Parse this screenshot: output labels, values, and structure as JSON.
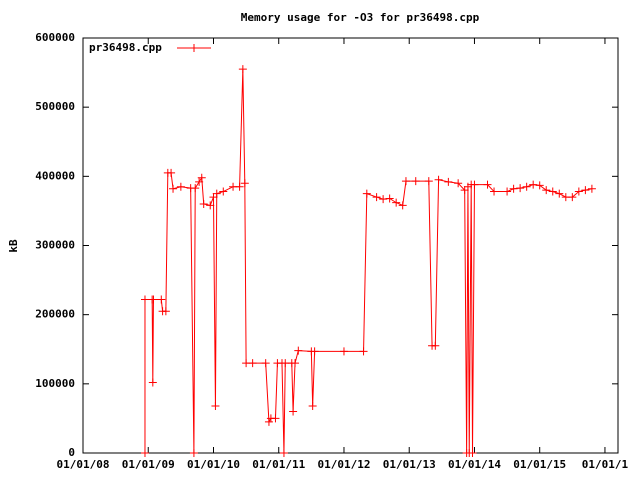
{
  "chart_data": {
    "type": "line",
    "title": "Memory usage for -O3 for pr36498.cpp",
    "y_label": "kB",
    "x": [
      2008.95,
      2008.95,
      2009.06,
      2009.07,
      2009.08,
      2009.2,
      2009.22,
      2009.27,
      2009.3,
      2009.35,
      2009.38,
      2009.5,
      2009.65,
      2009.7,
      2009.72,
      2009.78,
      2009.82,
      2009.85,
      2009.95,
      2010.0,
      2010.03,
      2010.05,
      2010.15,
      2010.3,
      2010.4,
      2010.45,
      2010.48,
      2010.5,
      2010.6,
      2010.8,
      2010.85,
      2010.88,
      2010.95,
      2010.98,
      2011.05,
      2011.08,
      2011.1,
      2011.2,
      2011.22,
      2011.25,
      2011.3,
      2011.5,
      2011.52,
      2011.55,
      2012.0,
      2012.3,
      2012.35,
      2012.5,
      2012.6,
      2012.7,
      2012.8,
      2012.9,
      2012.95,
      2013.1,
      2013.3,
      2013.35,
      2013.4,
      2013.45,
      2013.6,
      2013.75,
      2013.85,
      2013.88,
      2013.9,
      2013.92,
      2013.95,
      2013.97,
      2014.0,
      2014.2,
      2014.3,
      2014.5,
      2014.6,
      2014.7,
      2014.8,
      2014.9,
      2015.0,
      2015.1,
      2015.2,
      2015.3,
      2015.4,
      2015.5,
      2015.6,
      2015.7,
      2015.8
    ],
    "series": [
      {
        "name": "pr36498.cpp",
        "color": "#ff0000",
        "values": [
          0,
          222000,
          222000,
          102000,
          222000,
          222000,
          205000,
          205000,
          405000,
          405000,
          382000,
          385000,
          383000,
          0,
          383000,
          392000,
          398000,
          360000,
          358000,
          370000,
          68000,
          375000,
          378000,
          385000,
          385000,
          555000,
          390000,
          130000,
          130000,
          130000,
          45000,
          50000,
          50000,
          130000,
          130000,
          0,
          130000,
          130000,
          60000,
          130000,
          148000,
          147000,
          68000,
          147000,
          147000,
          147000,
          375000,
          370000,
          367000,
          368000,
          362000,
          358000,
          393000,
          393000,
          393000,
          155000,
          155000,
          395000,
          392000,
          390000,
          380000,
          0,
          385000,
          0,
          388000,
          0,
          388000,
          388000,
          378000,
          378000,
          382000,
          383000,
          385000,
          388000,
          387000,
          380000,
          378000,
          375000,
          370000,
          370000,
          378000,
          380000,
          382000
        ]
      }
    ],
    "xlim": [
      2008,
      2016.2
    ],
    "xticks": [
      {
        "value": 2008,
        "label": "01/01/08"
      },
      {
        "value": 2009,
        "label": "01/01/09"
      },
      {
        "value": 2010,
        "label": "01/01/10"
      },
      {
        "value": 2011,
        "label": "01/01/11"
      },
      {
        "value": 2012,
        "label": "01/01/12"
      },
      {
        "value": 2013,
        "label": "01/01/13"
      },
      {
        "value": 2014,
        "label": "01/01/14"
      },
      {
        "value": 2015,
        "label": "01/01/15"
      },
      {
        "value": 2016,
        "label": "01/01/1"
      }
    ],
    "ylim": [
      0,
      600000
    ],
    "yticks": [
      0,
      100000,
      200000,
      300000,
      400000,
      500000,
      600000
    ],
    "grid": false,
    "legend": "top-left"
  }
}
